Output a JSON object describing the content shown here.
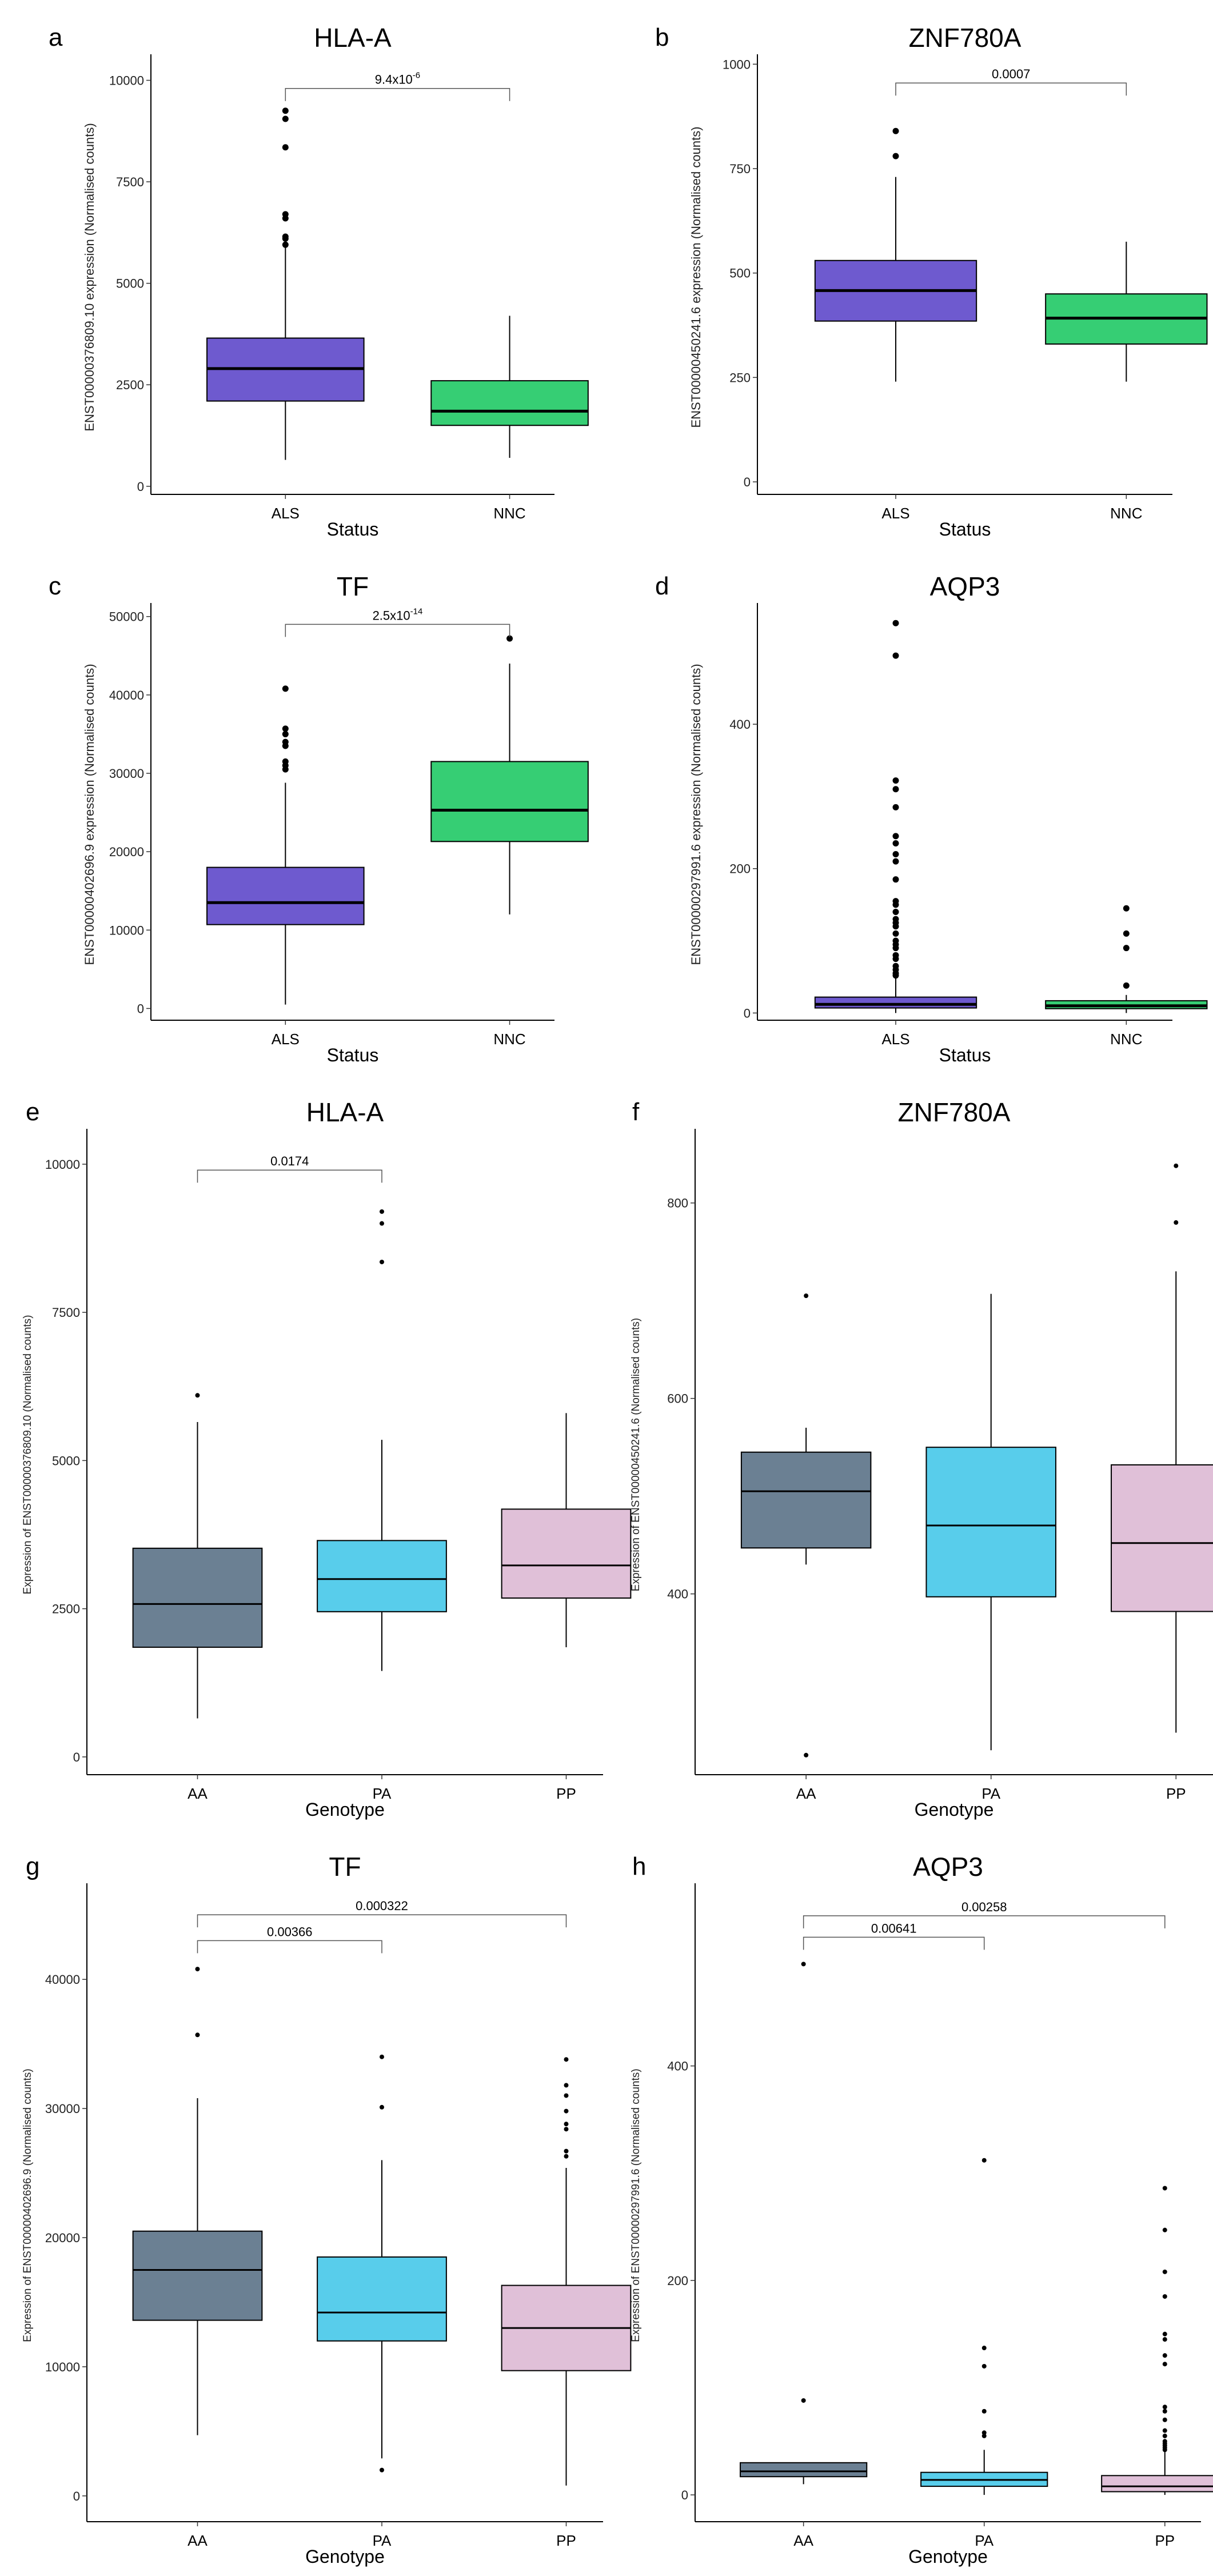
{
  "chart_data": [
    {
      "type": "box",
      "letter": "a",
      "title": "HLA-A",
      "ylabel": "ENST00000376809.10 expression (Normalised counts)",
      "xlabel": "Status",
      "categories": [
        "ALS",
        "NNC"
      ],
      "ylim": [
        -200,
        10500
      ],
      "yticks": [
        0,
        2500,
        5000,
        7500,
        10000
      ],
      "groups": [
        {
          "name": "ALS",
          "q1": 2100,
          "median": 2900,
          "q3": 3650,
          "whisker_low": 650,
          "whisker_high": 5900,
          "outliers": [
            5950,
            6100,
            6150,
            6600,
            6700,
            8350,
            9050,
            9250
          ],
          "color": "#6e5acf"
        },
        {
          "name": "NNC",
          "q1": 1500,
          "median": 1850,
          "q3": 2600,
          "whisker_low": 700,
          "whisker_high": 4200,
          "outliers": [],
          "color": "#36ce74"
        }
      ],
      "comparisons": [
        {
          "from": 0,
          "to": 1,
          "y": 9800,
          "text": "9.4x10",
          "sup": "-6"
        }
      ]
    },
    {
      "type": "box",
      "letter": "b",
      "title": "ZNF780A",
      "ylabel": "ENST00000450241.6 expression (Normalised counts)",
      "xlabel": "Status",
      "categories": [
        "ALS",
        "NNC"
      ],
      "ylim": [
        -30,
        1010
      ],
      "yticks": [
        0,
        250,
        500,
        750,
        1000
      ],
      "groups": [
        {
          "name": "ALS",
          "q1": 385,
          "median": 458,
          "q3": 530,
          "whisker_low": 240,
          "whisker_high": 730,
          "outliers": [
            780,
            840
          ],
          "color": "#6e5acf"
        },
        {
          "name": "NNC",
          "q1": 330,
          "median": 392,
          "q3": 450,
          "whisker_low": 240,
          "whisker_high": 575,
          "outliers": [],
          "color": "#36ce74"
        }
      ],
      "comparisons": [
        {
          "from": 0,
          "to": 1,
          "y": 955,
          "text": "0.0007",
          "sup": ""
        }
      ]
    },
    {
      "type": "box",
      "letter": "c",
      "title": "TF",
      "ylabel": "ENST00000402696.9 expression (Normalised counts)",
      "xlabel": "Status",
      "categories": [
        "ALS",
        "NNC"
      ],
      "ylim": [
        -1500,
        51000
      ],
      "yticks": [
        0,
        10000,
        20000,
        30000,
        40000,
        50000
      ],
      "groups": [
        {
          "name": "ALS",
          "q1": 10700,
          "median": 13500,
          "q3": 18000,
          "whisker_low": 500,
          "whisker_high": 28800,
          "outliers": [
            30500,
            31000,
            31500,
            33500,
            34000,
            35000,
            35700,
            40800
          ],
          "color": "#6e5acf"
        },
        {
          "name": "NNC",
          "q1": 21300,
          "median": 25300,
          "q3": 31500,
          "whisker_low": 12000,
          "whisker_high": 44000,
          "outliers": [
            47200
          ],
          "color": "#36ce74"
        }
      ],
      "comparisons": [
        {
          "from": 0,
          "to": 1,
          "y": 49000,
          "text": "2.5x10",
          "sup": "-14"
        }
      ]
    },
    {
      "type": "box",
      "letter": "d",
      "title": "AQP3",
      "ylabel": "ENST00000297991.6 expression (Normalised counts)",
      "xlabel": "Status",
      "categories": [
        "ALS",
        "NNC"
      ],
      "ylim": [
        -10,
        560
      ],
      "yticks": [
        0,
        200,
        400
      ],
      "groups": [
        {
          "name": "ALS",
          "q1": 7,
          "median": 12,
          "q3": 22,
          "whisker_low": 0,
          "whisker_high": 50,
          "outliers": [
            52,
            55,
            60,
            65,
            75,
            80,
            90,
            95,
            100,
            110,
            120,
            125,
            130,
            140,
            150,
            155,
            185,
            210,
            220,
            235,
            245,
            285,
            310,
            322,
            495,
            540
          ],
          "color": "#6e5acf"
        },
        {
          "name": "NNC",
          "q1": 6,
          "median": 10,
          "q3": 17,
          "whisker_low": 0,
          "whisker_high": 25,
          "outliers": [
            38,
            90,
            110,
            145
          ],
          "color": "#36ce74"
        }
      ],
      "comparisons": []
    },
    {
      "type": "box",
      "letter": "e",
      "title": "HLA-A",
      "ylabel": "Expression of ENST00000376809.10 (Normalised counts)",
      "xlabel": "Genotype",
      "categories": [
        "AA",
        "PA",
        "PP"
      ],
      "ylim": [
        -300,
        10500
      ],
      "yticks": [
        0,
        2500,
        5000,
        7500,
        10000
      ],
      "groups": [
        {
          "name": "AA",
          "q1": 1850,
          "median": 2580,
          "q3": 3520,
          "whisker_low": 650,
          "whisker_high": 5650,
          "outliers": [
            6100
          ],
          "color": "#6b8093"
        },
        {
          "name": "PA",
          "q1": 2450,
          "median": 3000,
          "q3": 3650,
          "whisker_low": 1450,
          "whisker_high": 5350,
          "outliers": [
            8350,
            9000,
            9200
          ],
          "color": "#58cdeb"
        },
        {
          "name": "PP",
          "q1": 2680,
          "median": 3230,
          "q3": 4180,
          "whisker_low": 1850,
          "whisker_high": 5800,
          "outliers": [],
          "color": "#e0c0d8"
        }
      ],
      "comparisons": [
        {
          "from": 0,
          "to": 1,
          "y": 9900,
          "text": "0.0174",
          "sup": ""
        }
      ]
    },
    {
      "type": "box",
      "letter": "f",
      "title": "ZNF780A",
      "ylabel": "Expression of ENST00000450241.6 (Normalised counts)",
      "xlabel": "Genotype",
      "categories": [
        "AA",
        "PA",
        "PP"
      ],
      "ylim": [
        215,
        870
      ],
      "yticks": [
        400,
        600,
        800
      ],
      "groups": [
        {
          "name": "AA",
          "q1": 447,
          "median": 505,
          "q3": 545,
          "whisker_low": 430,
          "whisker_high": 570,
          "outliers": [
            235,
            705
          ],
          "color": "#6b8093"
        },
        {
          "name": "PA",
          "q1": 397,
          "median": 470,
          "q3": 550,
          "whisker_low": 240,
          "whisker_high": 707,
          "outliers": [],
          "color": "#58cdeb"
        },
        {
          "name": "PP",
          "q1": 382,
          "median": 452,
          "q3": 532,
          "whisker_low": 258,
          "whisker_high": 730,
          "outliers": [
            780,
            838
          ],
          "color": "#e0c0d8"
        }
      ],
      "comparisons": []
    },
    {
      "type": "box",
      "letter": "g",
      "title": "TF",
      "ylabel": "Expression of ENST00000402696.9 (Normalised counts)",
      "xlabel": "Genotype",
      "categories": [
        "AA",
        "PA",
        "PP"
      ],
      "ylim": [
        -2000,
        47000
      ],
      "yticks": [
        0,
        10000,
        20000,
        30000,
        40000
      ],
      "groups": [
        {
          "name": "AA",
          "q1": 13600,
          "median": 17500,
          "q3": 20500,
          "whisker_low": 4700,
          "whisker_high": 30800,
          "outliers": [
            35700,
            40800
          ],
          "color": "#6b8093"
        },
        {
          "name": "PA",
          "q1": 12000,
          "median": 14200,
          "q3": 18500,
          "whisker_low": 2900,
          "whisker_high": 26000,
          "outliers": [
            2000,
            30100,
            34000
          ],
          "color": "#58cdeb"
        },
        {
          "name": "PP",
          "q1": 9700,
          "median": 13000,
          "q3": 16300,
          "whisker_low": 800,
          "whisker_high": 25400,
          "outliers": [
            26300,
            26700,
            28400,
            28800,
            29800,
            31000,
            31800,
            33800
          ],
          "color": "#e0c0d8"
        }
      ],
      "comparisons": [
        {
          "from": 0,
          "to": 1,
          "y": 43000,
          "text": "0.00366",
          "sup": ""
        },
        {
          "from": 0,
          "to": 2,
          "y": 45000,
          "text": "0.000322",
          "sup": ""
        }
      ]
    },
    {
      "type": "box",
      "letter": "h",
      "title": "AQP3",
      "ylabel": "Expression of ENST00000297991.6 (Normalised counts)",
      "xlabel": "Genotype",
      "categories": [
        "AA",
        "PA",
        "PP"
      ],
      "ylim": [
        -25,
        565
      ],
      "yticks": [
        0,
        200,
        400
      ],
      "groups": [
        {
          "name": "AA",
          "q1": 17,
          "median": 22,
          "q3": 30,
          "whisker_low": 10,
          "whisker_high": 30,
          "outliers": [
            88,
            495
          ],
          "color": "#6b8093"
        },
        {
          "name": "PA",
          "q1": 8,
          "median": 14,
          "q3": 21,
          "whisker_low": 0,
          "whisker_high": 42,
          "outliers": [
            55,
            58,
            78,
            120,
            137,
            312
          ],
          "color": "#58cdeb"
        },
        {
          "name": "PP",
          "q1": 3,
          "median": 8,
          "q3": 18,
          "whisker_low": 0,
          "whisker_high": 40,
          "outliers": [
            42,
            44,
            46,
            48,
            50,
            55,
            60,
            70,
            78,
            82,
            122,
            130,
            145,
            150,
            185,
            208,
            247,
            286
          ],
          "color": "#e0c0d8"
        }
      ],
      "comparisons": [
        {
          "from": 0,
          "to": 1,
          "y": 520,
          "text": "0.00641",
          "sup": ""
        },
        {
          "from": 0,
          "to": 2,
          "y": 540,
          "text": "0.00258",
          "sup": ""
        }
      ]
    }
  ]
}
